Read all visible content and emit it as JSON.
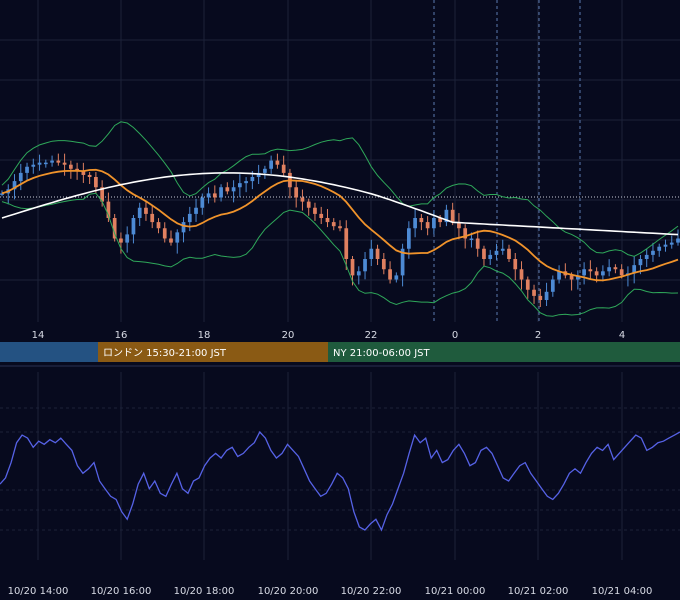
{
  "colors": {
    "background": "#070a1e",
    "grid": "#1c2238",
    "candle_up": "#4d8ad4",
    "candle_down": "#e08060",
    "bollinger": "#2fa85a",
    "ma_short": "#f0932b",
    "ma_long": "#ffffff",
    "oscillator": "#5662e6",
    "session_tokyo": "#245282",
    "session_london": "#8a5a14",
    "session_ny": "#1f5b3d"
  },
  "sessions": {
    "london": "ロンドン 15:30-21:00 JST",
    "ny": "NY 21:00-06:00 JST"
  },
  "chart_data": [
    {
      "type": "candlestick",
      "x_tick_labels": [
        "14",
        "16",
        "18",
        "20",
        "22",
        "0",
        "2",
        "4"
      ],
      "indicators": [
        "bollinger-bands",
        "moving-average-short",
        "moving-average-long"
      ],
      "series": [
        {
          "values": [
            0.52,
            0.54,
            0.58,
            0.62,
            0.65,
            0.66,
            0.67,
            0.67,
            0.68,
            0.67,
            0.66,
            0.64,
            0.63,
            0.61,
            0.6,
            0.55,
            0.48,
            0.4,
            0.3,
            0.28,
            0.32,
            0.4,
            0.45,
            0.42,
            0.38,
            0.35,
            0.3,
            0.28,
            0.33,
            0.38,
            0.42,
            0.45,
            0.5,
            0.52,
            0.5,
            0.55,
            0.53,
            0.55,
            0.57,
            0.58,
            0.6,
            0.62,
            0.64,
            0.68,
            0.66,
            0.62,
            0.55,
            0.5,
            0.48,
            0.45,
            0.42,
            0.4,
            0.38,
            0.36,
            0.35,
            0.2,
            0.12,
            0.14,
            0.2,
            0.25,
            0.2,
            0.15,
            0.1,
            0.12,
            0.25,
            0.35,
            0.4,
            0.38,
            0.35,
            0.4,
            0.38,
            0.44,
            0.38,
            0.35,
            0.3,
            0.3,
            0.25,
            0.2,
            0.22,
            0.24,
            0.25,
            0.2,
            0.15,
            0.1,
            0.05,
            0.02,
            0.0,
            0.04,
            0.1,
            0.14,
            0.12,
            0.1,
            0.12,
            0.15,
            0.14,
            0.12,
            0.14,
            0.16,
            0.15,
            0.12,
            0.13,
            0.17,
            0.2,
            0.22,
            0.24,
            0.26,
            0.27,
            0.28,
            0.3
          ]
        }
      ]
    },
    {
      "type": "line",
      "x_tick_labels": [
        "10/20 14:00",
        "10/20 16:00",
        "10/20 18:00",
        "10/20 20:00",
        "10/20 22:00",
        "10/21 00:00",
        "10/21 02:00",
        "10/21 04:00"
      ],
      "series": [
        {
          "values": [
            48,
            52,
            62,
            75,
            80,
            78,
            72,
            76,
            74,
            77,
            75,
            78,
            74,
            70,
            60,
            55,
            58,
            62,
            50,
            45,
            40,
            38,
            30,
            25,
            35,
            48,
            55,
            45,
            50,
            42,
            40,
            48,
            55,
            45,
            42,
            50,
            52,
            60,
            65,
            68,
            65,
            70,
            72,
            66,
            68,
            72,
            75,
            82,
            78,
            70,
            65,
            68,
            74,
            70,
            66,
            58,
            50,
            45,
            40,
            42,
            48,
            55,
            52,
            45,
            30,
            20,
            18,
            22,
            25,
            18,
            28,
            35,
            45,
            55,
            68,
            80,
            75,
            78,
            65,
            70,
            62,
            64,
            70,
            74,
            68,
            60,
            62,
            70,
            72,
            68,
            60,
            52,
            50,
            55,
            60,
            62,
            55,
            50,
            45,
            40,
            38,
            42,
            48,
            55,
            58,
            55,
            62,
            68,
            72,
            70,
            74,
            64,
            68,
            72,
            76,
            80,
            78,
            70,
            72,
            75,
            76,
            78,
            80,
            82
          ]
        }
      ]
    }
  ]
}
